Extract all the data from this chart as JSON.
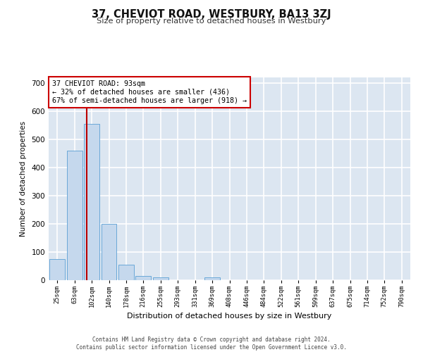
{
  "title": "37, CHEVIOT ROAD, WESTBURY, BA13 3ZJ",
  "subtitle": "Size of property relative to detached houses in Westbury",
  "xlabel": "Distribution of detached houses by size in Westbury",
  "ylabel": "Number of detached properties",
  "bar_labels": [
    "25sqm",
    "63sqm",
    "102sqm",
    "140sqm",
    "178sqm",
    "216sqm",
    "255sqm",
    "293sqm",
    "331sqm",
    "369sqm",
    "408sqm",
    "446sqm",
    "484sqm",
    "522sqm",
    "561sqm",
    "599sqm",
    "637sqm",
    "675sqm",
    "714sqm",
    "752sqm",
    "790sqm"
  ],
  "bar_values": [
    75,
    460,
    555,
    200,
    55,
    15,
    8,
    0,
    0,
    10,
    0,
    0,
    0,
    0,
    0,
    0,
    0,
    0,
    0,
    0,
    0
  ],
  "bar_color": "#c5d8ed",
  "bar_edge_color": "#5a9fd4",
  "background_color": "#dce6f1",
  "grid_color": "#ffffff",
  "red_line_x": 1.72,
  "annotation_line1": "37 CHEVIOT ROAD: 93sqm",
  "annotation_line2": "← 32% of detached houses are smaller (436)",
  "annotation_line3": "67% of semi-detached houses are larger (918) →",
  "annotation_box_color": "#cc0000",
  "ylim": [
    0,
    720
  ],
  "yticks": [
    0,
    100,
    200,
    300,
    400,
    500,
    600,
    700
  ],
  "footer_line1": "Contains HM Land Registry data © Crown copyright and database right 2024.",
  "footer_line2": "Contains public sector information licensed under the Open Government Licence v3.0."
}
